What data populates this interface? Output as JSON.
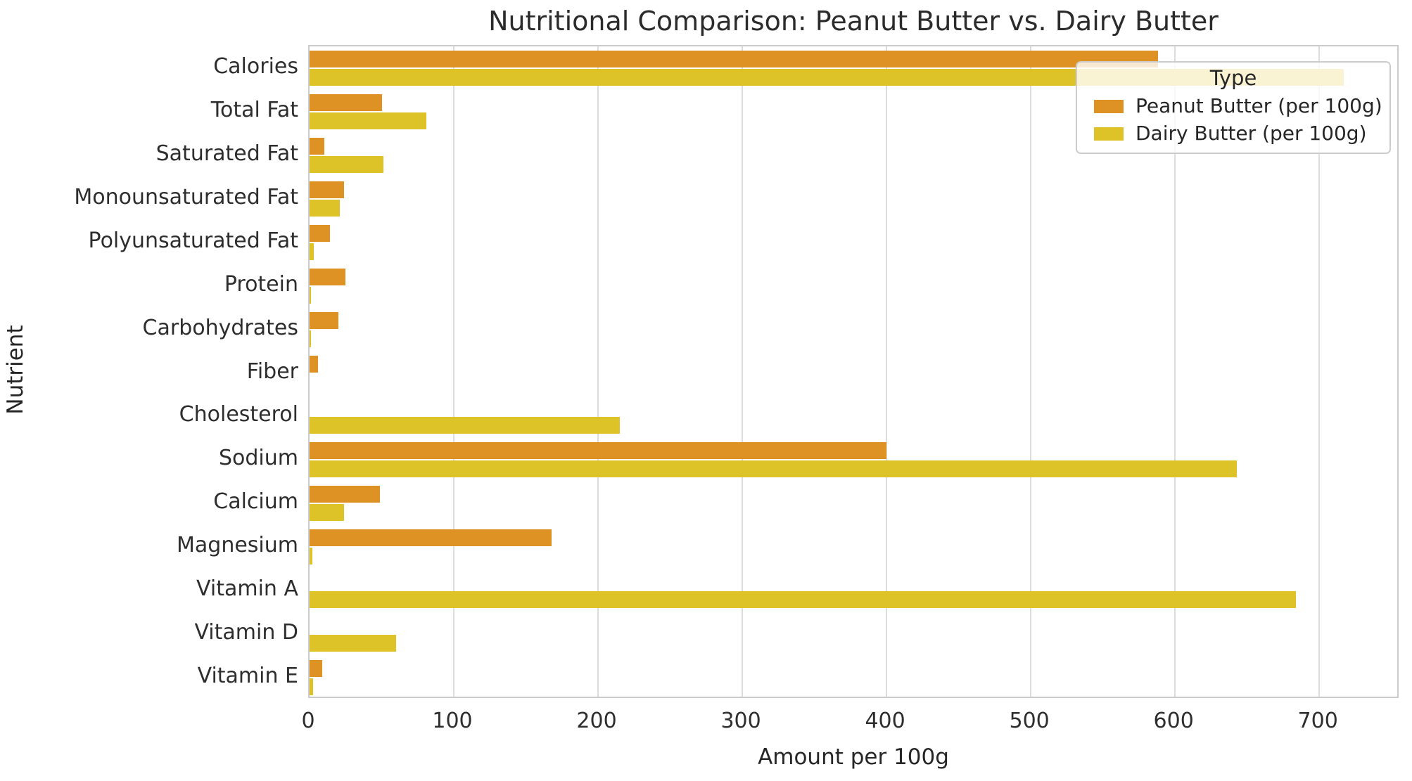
{
  "title": "Nutritional Comparison: Peanut Butter vs. Dairy Butter",
  "chart_data": {
    "type": "bar",
    "orientation": "horizontal",
    "title": "Nutritional Comparison: Peanut Butter vs. Dairy Butter",
    "xlabel": "Amount per 100g",
    "ylabel": "Nutrient",
    "categories": [
      "Calories",
      "Total Fat",
      "Saturated Fat",
      "Monounsaturated Fat",
      "Polyunsaturated Fat",
      "Protein",
      "Carbohydrates",
      "Fiber",
      "Cholesterol",
      "Sodium",
      "Calcium",
      "Magnesium",
      "Vitamin A",
      "Vitamin D",
      "Vitamin E"
    ],
    "series": [
      {
        "name": "Peanut Butter (per 100g)",
        "color": "#DD9223",
        "values": [
          588,
          50,
          10,
          24,
          14,
          25,
          20,
          6,
          0,
          400,
          49,
          168,
          0,
          0,
          9
        ]
      },
      {
        "name": "Dairy Butter (per 100g)",
        "color": "#DEC328",
        "values": [
          717,
          81,
          51,
          21,
          3,
          0.9,
          0.1,
          0,
          215,
          643,
          24,
          2,
          684,
          60,
          2.3
        ]
      }
    ],
    "xlim": [
      0,
      756
    ],
    "xticks": [
      0,
      100,
      200,
      300,
      400,
      500,
      600,
      700
    ],
    "grid": "vertical-only",
    "gridline_color": "#dcdcdc",
    "legend": {
      "title": "Type",
      "position": "upper-right"
    }
  }
}
